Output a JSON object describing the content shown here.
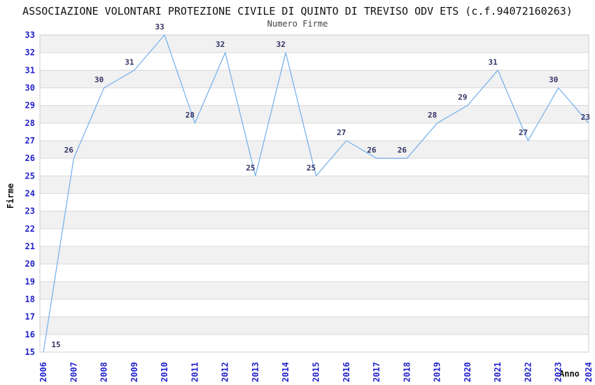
{
  "chart_data": {
    "type": "line",
    "title": "ASSOCIAZIONE VOLONTARI PROTEZIONE CIVILE DI QUINTO DI TREVISO ODV ETS (c.f.94072160263)",
    "subtitle": "Numero Firme",
    "xlabel": "Anno",
    "ylabel": "Firme",
    "categories": [
      "2006",
      "2007",
      "2008",
      "2009",
      "2010",
      "2011",
      "2012",
      "2013",
      "2014",
      "2015",
      "2016",
      "2017",
      "2018",
      "2019",
      "2020",
      "2021",
      "2022",
      "2023",
      "2024"
    ],
    "values": [
      15,
      26,
      30,
      31,
      33,
      28,
      32,
      25,
      32,
      25,
      27,
      26,
      26,
      28,
      29,
      31,
      27,
      30,
      23
    ],
    "last_point_plot_value": 28,
    "ylim": [
      15,
      33
    ],
    "ytick_step": 1,
    "grid": true,
    "legend": null,
    "colors": {
      "line": "#7ab4ec",
      "data_label": "#333366",
      "tick_label": "#2222cc",
      "band_fill": "#f1f1f1",
      "grid_line": "#d9d9d9",
      "plot_border": "#cccccc",
      "title": "#111111",
      "subtitle": "#444444",
      "axis_title": "#111111"
    }
  }
}
